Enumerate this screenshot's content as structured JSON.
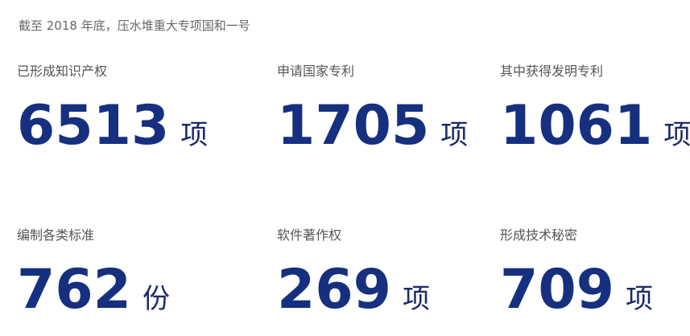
{
  "intro": "截至 2018 年底，压水堆重大专项国和一号",
  "stats": [
    {
      "label": "已形成知识产权",
      "value": "6513",
      "unit": "项"
    },
    {
      "label": "申请国家专利",
      "value": "1705",
      "unit": "项"
    },
    {
      "label": "其中获得发明专利",
      "value": "1061",
      "unit": "项"
    },
    {
      "label": "编制各类标准",
      "value": "762",
      "unit": "份"
    },
    {
      "label": "软件著作权",
      "value": "269",
      "unit": "项"
    },
    {
      "label": "形成技术秘密",
      "value": "709",
      "unit": "项"
    }
  ],
  "colors": {
    "number": "#16307f",
    "unit": "#1b2b66",
    "label": "#555555",
    "intro": "#666666",
    "background": "#ffffff"
  }
}
